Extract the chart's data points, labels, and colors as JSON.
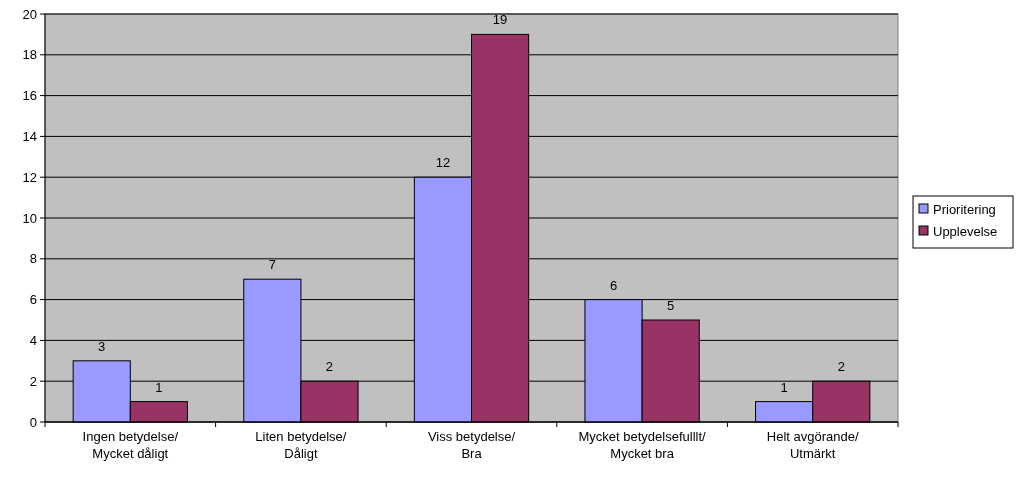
{
  "chart_data": {
    "type": "bar",
    "categories": [
      "Ingen betydelse/\nMycket dåligt",
      "Liten betydelse/\nDåligt",
      "Viss betydelse/\nBra",
      "Mycket betydelsefulllt/\nMycket bra",
      "Helt avgörande/\nUtmärkt"
    ],
    "series": [
      {
        "name": "Prioritering",
        "color": "#9999ff",
        "values": [
          3,
          7,
          12,
          6,
          1
        ]
      },
      {
        "name": "Upplevelse",
        "color": "#993366",
        "values": [
          1,
          2,
          19,
          5,
          2
        ]
      }
    ],
    "ylim": [
      0,
      20
    ],
    "yticks": [
      0,
      2,
      4,
      6,
      8,
      10,
      12,
      14,
      16,
      18,
      20
    ],
    "grid": "y",
    "legend": "right",
    "data_labels": true
  }
}
